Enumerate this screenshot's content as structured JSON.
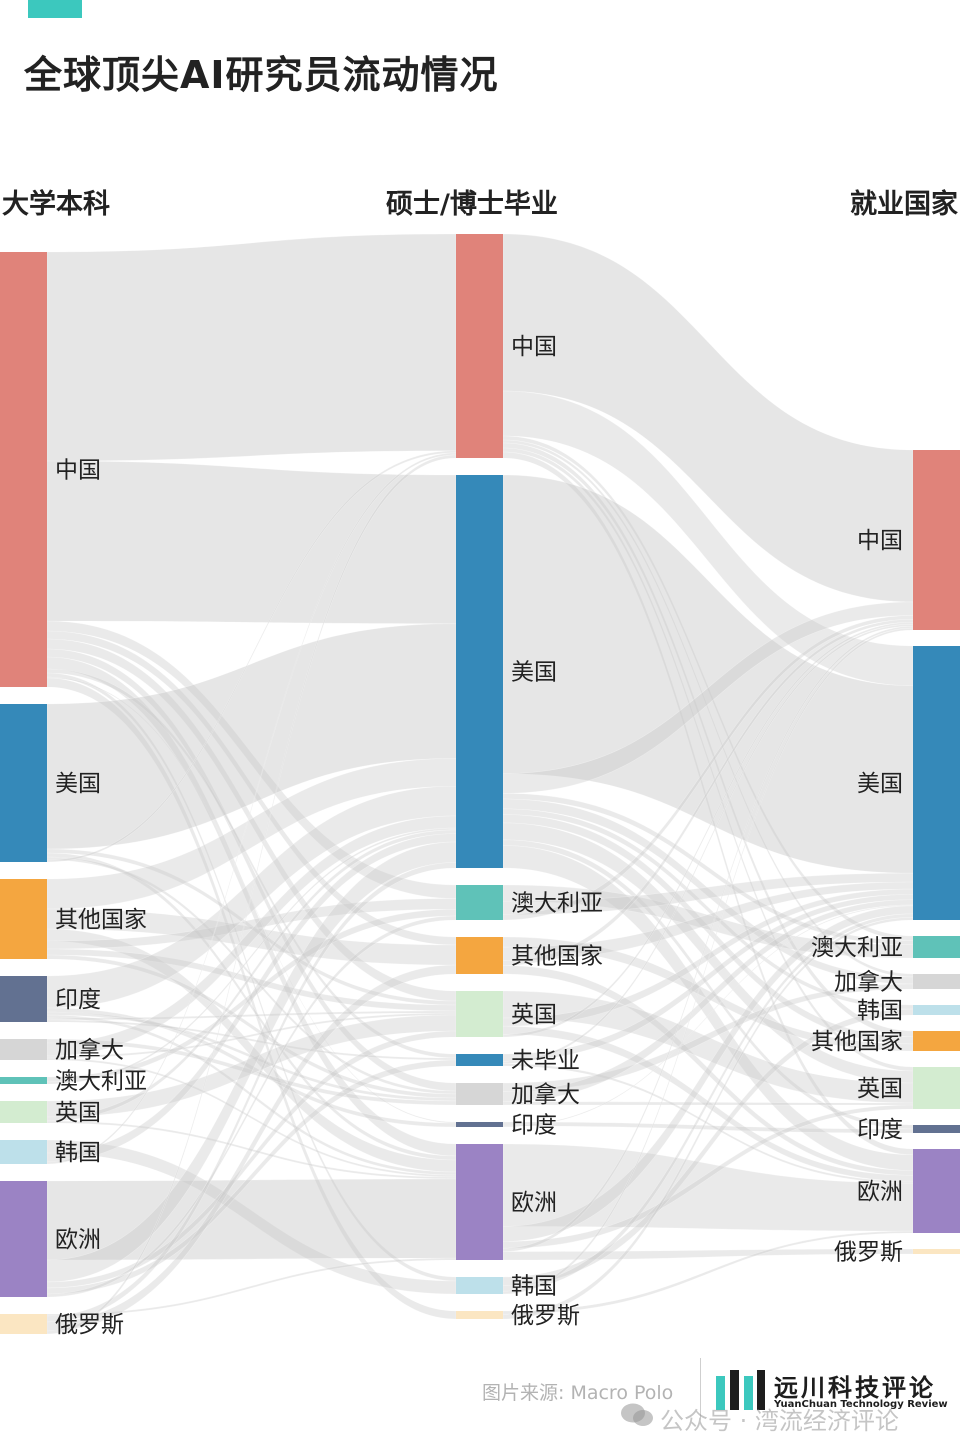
{
  "title": "全球顶尖AI研究员流动情况",
  "columns": [
    "大学本科",
    "硕士/博士毕业",
    "就业国家"
  ],
  "source": "图片来源: Macro Polo",
  "logo": {
    "name": "远川科技评论",
    "sub": "YuanChuan Technology Review"
  },
  "watermark": "公众号 · 湾流经济评论",
  "colors": {
    "accent": "#3cc8be",
    "china": "#e0837a",
    "usa": "#3589b9",
    "other": "#f4a640",
    "india": "#627191",
    "canada": "#d6d6d6",
    "australia": "#5fc2b8",
    "uk": "#d3ecd0",
    "korea": "#bde0ea",
    "europe": "#9b83c4",
    "russia": "#fbe6c2",
    "ungrad": "#3589b9",
    "flow": "#c8c8c8"
  },
  "chart_data": {
    "type": "sankey",
    "stages": [
      "大学本科",
      "硕士/博士毕业",
      "就业国家"
    ],
    "nodes": [
      {
        "id": "u-cn",
        "stage": 0,
        "label": "中国",
        "color": "china",
        "size": 435
      },
      {
        "id": "u-us",
        "stage": 0,
        "label": "美国",
        "color": "usa",
        "size": 158
      },
      {
        "id": "u-ot",
        "stage": 0,
        "label": "其他国家",
        "color": "other",
        "size": 80
      },
      {
        "id": "u-in",
        "stage": 0,
        "label": "印度",
        "color": "india",
        "size": 46
      },
      {
        "id": "u-ca",
        "stage": 0,
        "label": "加拿大",
        "color": "canada",
        "size": 21
      },
      {
        "id": "u-au",
        "stage": 0,
        "label": "澳大利亚",
        "color": "australia",
        "size": 7
      },
      {
        "id": "u-uk",
        "stage": 0,
        "label": "英国",
        "color": "uk",
        "size": 22
      },
      {
        "id": "u-kr",
        "stage": 0,
        "label": "韩国",
        "color": "korea",
        "size": 24
      },
      {
        "id": "u-eu",
        "stage": 0,
        "label": "欧洲",
        "color": "europe",
        "size": 116
      },
      {
        "id": "u-ru",
        "stage": 0,
        "label": "俄罗斯",
        "color": "russia",
        "size": 20
      },
      {
        "id": "g-cn",
        "stage": 1,
        "label": "中国",
        "color": "china",
        "size": 224
      },
      {
        "id": "g-us",
        "stage": 1,
        "label": "美国",
        "color": "usa",
        "size": 393
      },
      {
        "id": "g-au",
        "stage": 1,
        "label": "澳大利亚",
        "color": "australia",
        "size": 35
      },
      {
        "id": "g-ot",
        "stage": 1,
        "label": "其他国家",
        "color": "other",
        "size": 37
      },
      {
        "id": "g-uk",
        "stage": 1,
        "label": "英国",
        "color": "uk",
        "size": 46
      },
      {
        "id": "g-ng",
        "stage": 1,
        "label": "未毕业",
        "color": "ungrad",
        "size": 12
      },
      {
        "id": "g-ca",
        "stage": 1,
        "label": "加拿大",
        "color": "canada",
        "size": 22
      },
      {
        "id": "g-in",
        "stage": 1,
        "label": "印度",
        "color": "india",
        "size": 5
      },
      {
        "id": "g-eu",
        "stage": 1,
        "label": "欧洲",
        "color": "europe",
        "size": 116
      },
      {
        "id": "g-kr",
        "stage": 1,
        "label": "韩国",
        "color": "korea",
        "size": 17
      },
      {
        "id": "g-ru",
        "stage": 1,
        "label": "俄罗斯",
        "color": "russia",
        "size": 8
      },
      {
        "id": "j-cn",
        "stage": 2,
        "label": "中国",
        "color": "china",
        "size": 180
      },
      {
        "id": "j-us",
        "stage": 2,
        "label": "美国",
        "color": "usa",
        "size": 274
      },
      {
        "id": "j-au",
        "stage": 2,
        "label": "澳大利亚",
        "color": "australia",
        "size": 22
      },
      {
        "id": "j-ca",
        "stage": 2,
        "label": "加拿大",
        "color": "canada",
        "size": 15
      },
      {
        "id": "j-kr",
        "stage": 2,
        "label": "韩国",
        "color": "korea",
        "size": 10
      },
      {
        "id": "j-ot",
        "stage": 2,
        "label": "其他国家",
        "color": "other",
        "size": 20
      },
      {
        "id": "j-uk",
        "stage": 2,
        "label": "英国",
        "color": "uk",
        "size": 42
      },
      {
        "id": "j-in",
        "stage": 2,
        "label": "印度",
        "color": "india",
        "size": 8
      },
      {
        "id": "j-eu",
        "stage": 2,
        "label": "欧洲",
        "color": "europe",
        "size": 84
      },
      {
        "id": "j-ru",
        "stage": 2,
        "label": "俄罗斯",
        "color": "russia",
        "size": 5
      }
    ],
    "flows": [
      [
        "u-cn",
        "g-cn",
        209
      ],
      [
        "u-cn",
        "g-us",
        160
      ],
      [
        "u-cn",
        "g-au",
        10
      ],
      [
        "u-cn",
        "g-ot",
        8
      ],
      [
        "u-cn",
        "g-uk",
        10
      ],
      [
        "u-cn",
        "g-ca",
        8
      ],
      [
        "u-cn",
        "g-eu",
        12
      ],
      [
        "u-cn",
        "g-ng",
        4
      ],
      [
        "u-cn",
        "g-kr",
        4
      ],
      [
        "u-cn",
        "g-in",
        1
      ],
      [
        "u-cn",
        "g-ru",
        9
      ],
      [
        "u-us",
        "g-us",
        145
      ],
      [
        "u-us",
        "g-uk",
        4
      ],
      [
        "u-us",
        "g-eu",
        4
      ],
      [
        "u-us",
        "g-ca",
        3
      ],
      [
        "u-us",
        "g-cn",
        2
      ],
      [
        "u-ot",
        "g-us",
        30
      ],
      [
        "u-ot",
        "g-ot",
        20
      ],
      [
        "u-ot",
        "g-eu",
        12
      ],
      [
        "u-ot",
        "g-au",
        8
      ],
      [
        "u-ot",
        "g-uk",
        6
      ],
      [
        "u-ot",
        "g-ca",
        4
      ],
      [
        "u-in",
        "g-us",
        32
      ],
      [
        "u-in",
        "g-in",
        4
      ],
      [
        "u-in",
        "g-ca",
        3
      ],
      [
        "u-in",
        "g-eu",
        3
      ],
      [
        "u-in",
        "g-uk",
        2
      ],
      [
        "u-in",
        "g-ng",
        2
      ],
      [
        "u-ca",
        "g-ca",
        4
      ],
      [
        "u-ca",
        "g-us",
        13
      ],
      [
        "u-ca",
        "g-uk",
        2
      ],
      [
        "u-ca",
        "g-eu",
        2
      ],
      [
        "u-au",
        "g-au",
        5
      ],
      [
        "u-au",
        "g-us",
        2
      ],
      [
        "u-uk",
        "g-uk",
        16
      ],
      [
        "u-uk",
        "g-us",
        4
      ],
      [
        "u-uk",
        "g-eu",
        2
      ],
      [
        "u-kr",
        "g-kr",
        13
      ],
      [
        "u-kr",
        "g-us",
        9
      ],
      [
        "u-kr",
        "g-cn",
        2
      ],
      [
        "u-eu",
        "g-eu",
        79
      ],
      [
        "u-eu",
        "g-us",
        22
      ],
      [
        "u-eu",
        "g-uk",
        6
      ],
      [
        "u-eu",
        "g-ng",
        6
      ],
      [
        "u-eu",
        "g-au",
        3
      ],
      [
        "u-ru",
        "g-eu",
        2
      ],
      [
        "u-ru",
        "g-us",
        6
      ],
      [
        "u-ru",
        "g-ot",
        9
      ],
      [
        "u-ru",
        "g-cn",
        3
      ],
      [
        "g-cn",
        "j-cn",
        157
      ],
      [
        "g-cn",
        "j-us",
        45
      ],
      [
        "g-cn",
        "j-au",
        4
      ],
      [
        "g-cn",
        "j-ca",
        3
      ],
      [
        "g-cn",
        "j-ot",
        5
      ],
      [
        "g-cn",
        "j-uk",
        4
      ],
      [
        "g-cn",
        "j-eu",
        6
      ],
      [
        "g-us",
        "j-us",
        212
      ],
      [
        "g-us",
        "j-cn",
        14
      ],
      [
        "g-us",
        "j-au",
        4
      ],
      [
        "g-us",
        "j-ca",
        7
      ],
      [
        "g-us",
        "j-kr",
        4
      ],
      [
        "g-us",
        "j-ot",
        6
      ],
      [
        "g-us",
        "j-uk",
        12
      ],
      [
        "g-us",
        "j-in",
        4
      ],
      [
        "g-us",
        "j-eu",
        16
      ],
      [
        "g-au",
        "j-au",
        12
      ],
      [
        "g-au",
        "j-us",
        10
      ],
      [
        "g-au",
        "j-cn",
        4
      ],
      [
        "g-ot",
        "j-ot",
        6
      ],
      [
        "g-ot",
        "j-us",
        8
      ],
      [
        "g-ot",
        "j-cn",
        3
      ],
      [
        "g-ot",
        "j-eu",
        5
      ],
      [
        "g-uk",
        "j-uk",
        20
      ],
      [
        "g-uk",
        "j-us",
        6
      ],
      [
        "g-uk",
        "j-eu",
        6
      ],
      [
        "g-uk",
        "j-cn",
        2
      ],
      [
        "g-ng",
        "j-us",
        6
      ],
      [
        "g-ng",
        "j-cn",
        2
      ],
      [
        "g-ng",
        "j-eu",
        2
      ],
      [
        "g-ca",
        "j-ca",
        5
      ],
      [
        "g-ca",
        "j-us",
        6
      ],
      [
        "g-ca",
        "j-uk",
        2
      ],
      [
        "g-in",
        "j-in",
        4
      ],
      [
        "g-in",
        "j-us",
        1
      ],
      [
        "g-eu",
        "j-eu",
        49
      ],
      [
        "g-eu",
        "j-us",
        9
      ],
      [
        "g-eu",
        "j-uk",
        4
      ],
      [
        "g-eu",
        "j-cn",
        2
      ],
      [
        "g-eu",
        "j-ru",
        5
      ],
      [
        "g-kr",
        "j-kr",
        6
      ],
      [
        "g-kr",
        "j-us",
        4
      ],
      [
        "g-kr",
        "j-cn",
        2
      ],
      [
        "g-ru",
        "j-eu",
        2
      ],
      [
        "g-ru",
        "j-us",
        3
      ]
    ]
  }
}
